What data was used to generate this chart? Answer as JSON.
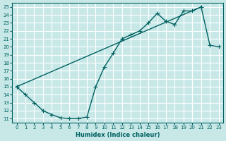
{
  "xlabel": "Humidex (Indice chaleur)",
  "bg_color": "#c8e8e8",
  "grid_color": "#ffffff",
  "line_color": "#006060",
  "xlim": [
    -0.5,
    23.5
  ],
  "ylim": [
    10.5,
    25.5
  ],
  "xticks": [
    0,
    1,
    2,
    3,
    4,
    5,
    6,
    7,
    8,
    9,
    10,
    11,
    12,
    13,
    14,
    15,
    16,
    17,
    18,
    19,
    20,
    21,
    22,
    23
  ],
  "yticks": [
    11,
    12,
    13,
    14,
    15,
    16,
    17,
    18,
    19,
    20,
    21,
    22,
    23,
    24,
    25
  ],
  "curve1_x": [
    0,
    1,
    2,
    3,
    4,
    5,
    6,
    7,
    8,
    9,
    10,
    11,
    12,
    13,
    14,
    15,
    16,
    17,
    18,
    19,
    20,
    21
  ],
  "curve1_y": [
    15.0,
    14.0,
    13.0,
    12.0,
    11.5,
    11.1,
    11.0,
    11.0,
    11.2,
    15.0,
    17.5,
    19.2,
    21.0,
    21.5,
    22.0,
    23.0,
    24.2,
    23.2,
    22.8,
    24.5,
    24.5,
    25.0
  ],
  "curve2_x": [
    0,
    21,
    22,
    23
  ],
  "curve2_y": [
    15.0,
    25.0,
    20.2,
    20.0
  ]
}
